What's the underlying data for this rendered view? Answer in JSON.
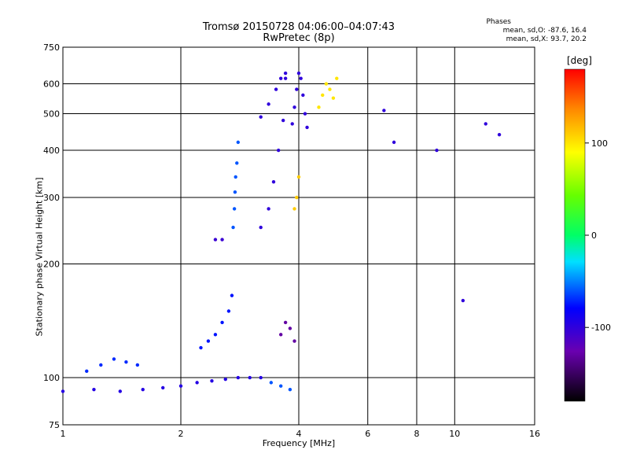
{
  "chart_data": {
    "type": "scatter",
    "title": "Tromsø 20150728 04:06:00–04:07:43",
    "subtitle": "RwPretec (8p)",
    "xlabel": "Frequency [MHz]",
    "ylabel": "Stationary phase Virtual Height [km]",
    "xscale": "log",
    "yscale": "log",
    "xlim": [
      1,
      16
    ],
    "ylim": [
      75,
      750
    ],
    "x_ticks": [
      1,
      2,
      4,
      6,
      8,
      10,
      16
    ],
    "x_ticklabels": [
      "1",
      "2",
      "4",
      "6",
      "8",
      "10",
      "16"
    ],
    "y_ticks": [
      75,
      100,
      200,
      300,
      400,
      500,
      600,
      750
    ],
    "y_ticklabels": [
      "75",
      "100",
      "200",
      "300",
      "400",
      "500",
      "600",
      "750"
    ],
    "grid": true,
    "legend": "colorbar-right",
    "colorbar": {
      "label": "[deg]",
      "range": [
        -180,
        180
      ],
      "ticks": [
        100,
        0,
        -100
      ],
      "ticklabels": [
        "100",
        "0",
        "-100"
      ]
    },
    "annotation": {
      "heading": "Phases",
      "line1": "mean, sd,O: -87.6, 16.4",
      "line2": "mean, sd,X:  93.7, 20.2"
    },
    "traces": [
      {
        "x": [
          1.0,
          1.2,
          1.4,
          1.6,
          1.8,
          2.0,
          2.2,
          2.4,
          2.6,
          2.8,
          3.0,
          3.2
        ],
        "y": [
          92,
          93,
          92,
          93,
          94,
          95,
          97,
          98,
          99,
          100,
          100,
          100
        ],
        "phase": -95
      },
      {
        "x": [
          1.15,
          1.25,
          1.35,
          1.45,
          1.55
        ],
        "y": [
          104,
          108,
          112,
          110,
          108
        ],
        "phase": -70
      },
      {
        "x": [
          2.25,
          2.35,
          2.45,
          2.55,
          2.65,
          2.7
        ],
        "y": [
          120,
          125,
          130,
          140,
          150,
          165
        ],
        "phase": -75
      },
      {
        "x": [
          2.72,
          2.74,
          2.75,
          2.76,
          2.78,
          2.8
        ],
        "y": [
          250,
          280,
          310,
          340,
          370,
          420
        ],
        "phase": -60
      },
      {
        "x": [
          2.45,
          2.55
        ],
        "y": [
          232,
          232
        ],
        "phase": -105
      },
      {
        "x": [
          3.2,
          3.35,
          3.45,
          3.55,
          3.65,
          3.7
        ],
        "y": [
          250,
          280,
          330,
          400,
          480,
          620
        ],
        "phase": -100
      },
      {
        "x": [
          3.2,
          3.35,
          3.5,
          3.6,
          3.7
        ],
        "y": [
          490,
          530,
          580,
          620,
          640
        ],
        "phase": -100
      },
      {
        "x": [
          3.85,
          3.9,
          3.95,
          4.0,
          4.05,
          4.1,
          4.15,
          4.2
        ],
        "y": [
          470,
          520,
          580,
          640,
          620,
          560,
          500,
          460
        ],
        "phase": -100
      },
      {
        "x": [
          4.5,
          4.6,
          4.7,
          4.8,
          4.9,
          5.0
        ],
        "y": [
          520,
          560,
          600,
          580,
          550,
          620
        ],
        "phase": 100
      },
      {
        "x": [
          3.6,
          3.7,
          3.8,
          3.9
        ],
        "y": [
          130,
          140,
          135,
          125
        ],
        "phase": -130
      },
      {
        "x": [
          3.9,
          3.95,
          4.0
        ],
        "y": [
          280,
          300,
          340
        ],
        "phase": 110
      },
      {
        "x": [
          6.6,
          7.0,
          9.0,
          10.5,
          12.0,
          13.0
        ],
        "y": [
          510,
          420,
          400,
          160,
          470,
          440
        ],
        "phase": -100
      },
      {
        "x": [
          3.4,
          3.6,
          3.8
        ],
        "y": [
          97,
          95,
          93
        ],
        "phase": -60
      }
    ]
  }
}
